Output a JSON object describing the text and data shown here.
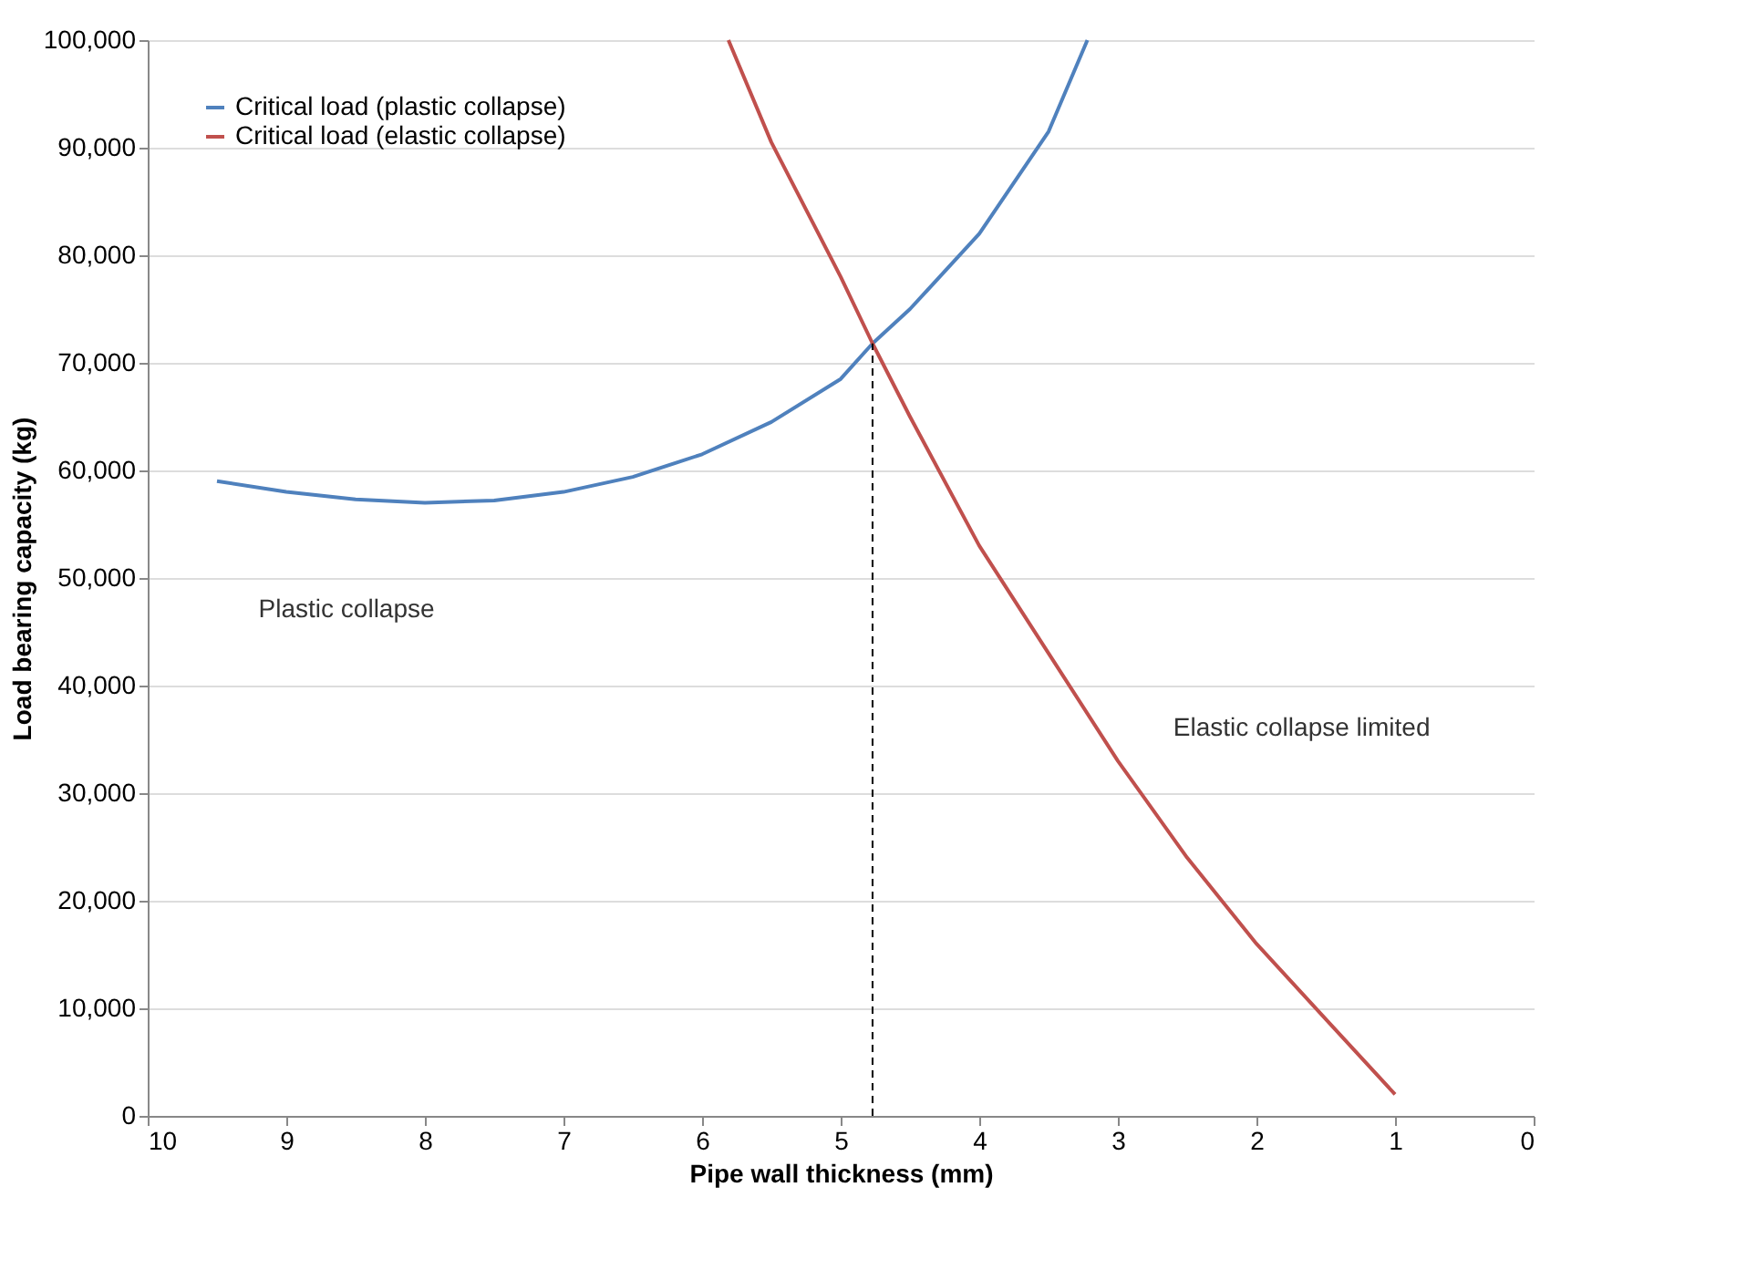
{
  "chart_data": {
    "type": "line",
    "xlabel": "Pipe wall thickness (mm)",
    "ylabel": "Load bearing capacity (kg)",
    "xlim": [
      10,
      0
    ],
    "xticks": [
      10,
      9,
      8,
      7,
      6,
      5,
      4,
      3,
      2,
      1,
      0
    ],
    "ylim": [
      0,
      100000
    ],
    "yticks": [
      0,
      {
        "value": 10000,
        "label": "10,000"
      },
      {
        "value": 20000,
        "label": "20,000"
      },
      {
        "value": 30000,
        "label": "30,000"
      },
      {
        "value": 40000,
        "label": "40,000"
      },
      {
        "value": 50000,
        "label": "50,000"
      },
      {
        "value": 60000,
        "label": "60,000"
      },
      {
        "value": 70000,
        "label": "70,000"
      },
      {
        "value": 80000,
        "label": "80,000"
      },
      {
        "value": 90000,
        "label": "90,000"
      },
      {
        "value": 100000,
        "label": "100,000"
      }
    ],
    "grid": "y",
    "legend": "top left",
    "marker": "none",
    "series": [
      {
        "name": "Critical load (plastic collapse)",
        "color": "#4f81bd",
        "x": [
          9.5,
          9,
          8.5,
          8,
          7.5,
          7,
          6.5,
          6,
          5.5,
          5,
          4.77,
          4.5,
          4,
          3.5,
          3.22
        ],
        "values": [
          59000,
          58000,
          57300,
          57000,
          57200,
          58000,
          59400,
          61500,
          64500,
          68500,
          71800,
          75000,
          82000,
          91500,
          100000
        ]
      },
      {
        "name": "Critical load (elastic collapse)",
        "color": "#c0504d",
        "x": [
          5.81,
          5.5,
          5,
          4.77,
          4.5,
          4,
          3.5,
          3,
          2.5,
          2,
          1.5,
          1
        ],
        "values": [
          100000,
          90500,
          78000,
          71800,
          65000,
          53000,
          43000,
          33000,
          24000,
          16000,
          9000,
          2000
        ]
      },
      {
        "type": "line",
        "line_style": "dashed",
        "color": "#000000",
        "x": [
          4.77,
          4.77
        ],
        "values": [
          0,
          71800
        ]
      }
    ],
    "annotations": [
      "Plastic collapse",
      "Elastic collapse limited"
    ]
  }
}
